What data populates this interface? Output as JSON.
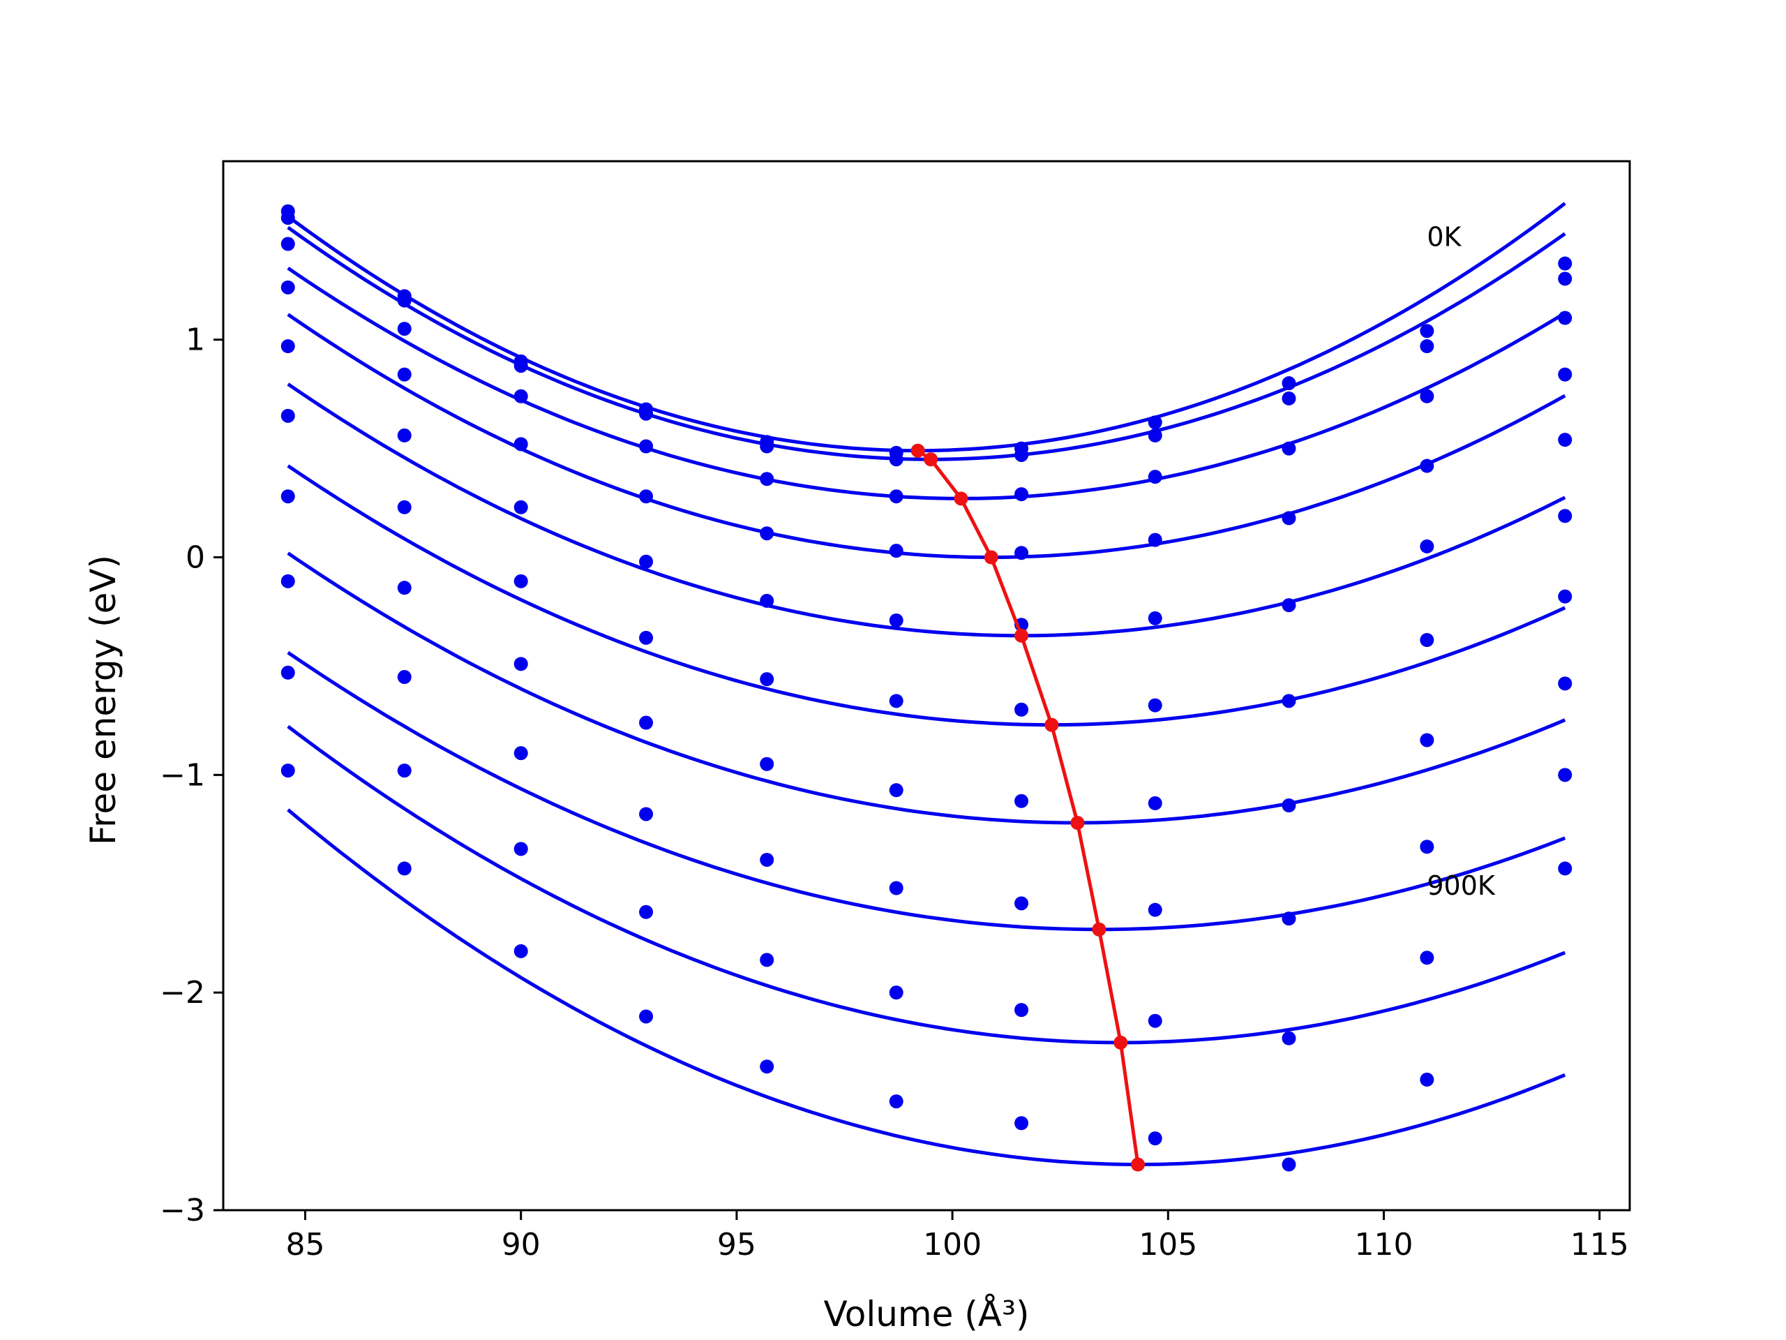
{
  "chart_data": {
    "type": "scatter",
    "title": "",
    "xlabel": "Volume (Å³)",
    "ylabel": "Free energy (eV)",
    "xlim": [
      83.1,
      115.7
    ],
    "ylim": [
      -3.0,
      1.82
    ],
    "xticks": [
      85,
      90,
      95,
      100,
      105,
      110,
      115
    ],
    "xtick_labels": [
      "85",
      "90",
      "95",
      "100",
      "105",
      "110",
      "115"
    ],
    "yticks": [
      -3,
      -2,
      -1,
      0,
      1
    ],
    "ytick_labels": [
      "−3",
      "−2",
      "−1",
      "0",
      "1"
    ],
    "grid": false,
    "annotations": [
      {
        "text": "0K",
        "x": 111.0,
        "y": 1.43
      },
      {
        "text": "900K",
        "x": 111.0,
        "y": -1.55
      }
    ],
    "colors": {
      "series": "#0000ee",
      "minimum": "#ee1111"
    },
    "x": [
      84.6,
      87.3,
      90.0,
      92.9,
      95.7,
      98.7,
      101.6,
      104.7,
      107.8,
      111.0,
      114.2
    ],
    "series": [
      {
        "points": [
          1.59,
          1.2,
          0.9,
          0.68,
          0.53,
          0.48,
          0.5,
          0.62,
          0.8,
          1.04,
          1.35
        ],
        "fit": {
          "a": 0.00505,
          "vmin": 99.2,
          "fmin": 0.49
        }
      },
      {
        "points": [
          1.56,
          1.18,
          0.88,
          0.66,
          0.51,
          0.45,
          0.47,
          0.56,
          0.73,
          0.97,
          1.28
        ],
        "fit": {
          "a": 0.0048,
          "vmin": 99.5,
          "fmin": 0.45
        }
      },
      {
        "points": [
          1.44,
          1.05,
          0.74,
          0.51,
          0.36,
          0.28,
          0.29,
          0.37,
          0.5,
          0.74,
          1.1
        ],
        "fit": {
          "a": 0.00435,
          "vmin": 100.2,
          "fmin": 0.27
        }
      },
      {
        "points": [
          1.24,
          0.84,
          0.52,
          0.28,
          0.11,
          0.03,
          0.02,
          0.08,
          0.18,
          0.42,
          0.84
        ],
        "fit": {
          "a": 0.0042,
          "vmin": 100.9,
          "fmin": 0.0
        }
      },
      {
        "points": [
          0.97,
          0.56,
          0.23,
          -0.02,
          -0.2,
          -0.29,
          -0.31,
          -0.28,
          -0.22,
          0.05,
          0.54
        ],
        "fit": {
          "a": 0.004,
          "vmin": 101.6,
          "fmin": -0.36
        }
      },
      {
        "points": [
          0.65,
          0.23,
          -0.11,
          -0.37,
          -0.56,
          -0.66,
          -0.7,
          -0.68,
          -0.66,
          -0.38,
          0.19
        ],
        "fit": {
          "a": 0.0038,
          "vmin": 102.3,
          "fmin": -0.77
        }
      },
      {
        "points": [
          0.28,
          -0.14,
          -0.49,
          -0.76,
          -0.95,
          -1.07,
          -1.12,
          -1.13,
          -1.14,
          -0.84,
          -0.18
        ],
        "fit": {
          "a": 0.0037,
          "vmin": 102.9,
          "fmin": -1.22
        }
      },
      {
        "points": [
          -0.11,
          -0.55,
          -0.9,
          -1.18,
          -1.39,
          -1.52,
          -1.59,
          -1.62,
          -1.66,
          -1.33,
          -0.58
        ],
        "fit": {
          "a": 0.0036,
          "vmin": 103.4,
          "fmin": -1.71
        }
      },
      {
        "points": [
          -0.53,
          -0.98,
          -1.34,
          -1.63,
          -1.85,
          -2.0,
          -2.08,
          -2.13,
          -2.21,
          -1.84,
          -1.0
        ],
        "fit": {
          "a": 0.0039,
          "vmin": 103.9,
          "fmin": -2.23
        }
      },
      {
        "points": [
          -0.98,
          -1.43,
          -1.81,
          -2.11,
          -2.34,
          -2.5,
          -2.6,
          -2.67,
          -2.79,
          -2.4,
          -1.43
        ],
        "fit": {
          "a": 0.0042,
          "vmin": 104.3,
          "fmin": -2.79
        }
      }
    ]
  }
}
